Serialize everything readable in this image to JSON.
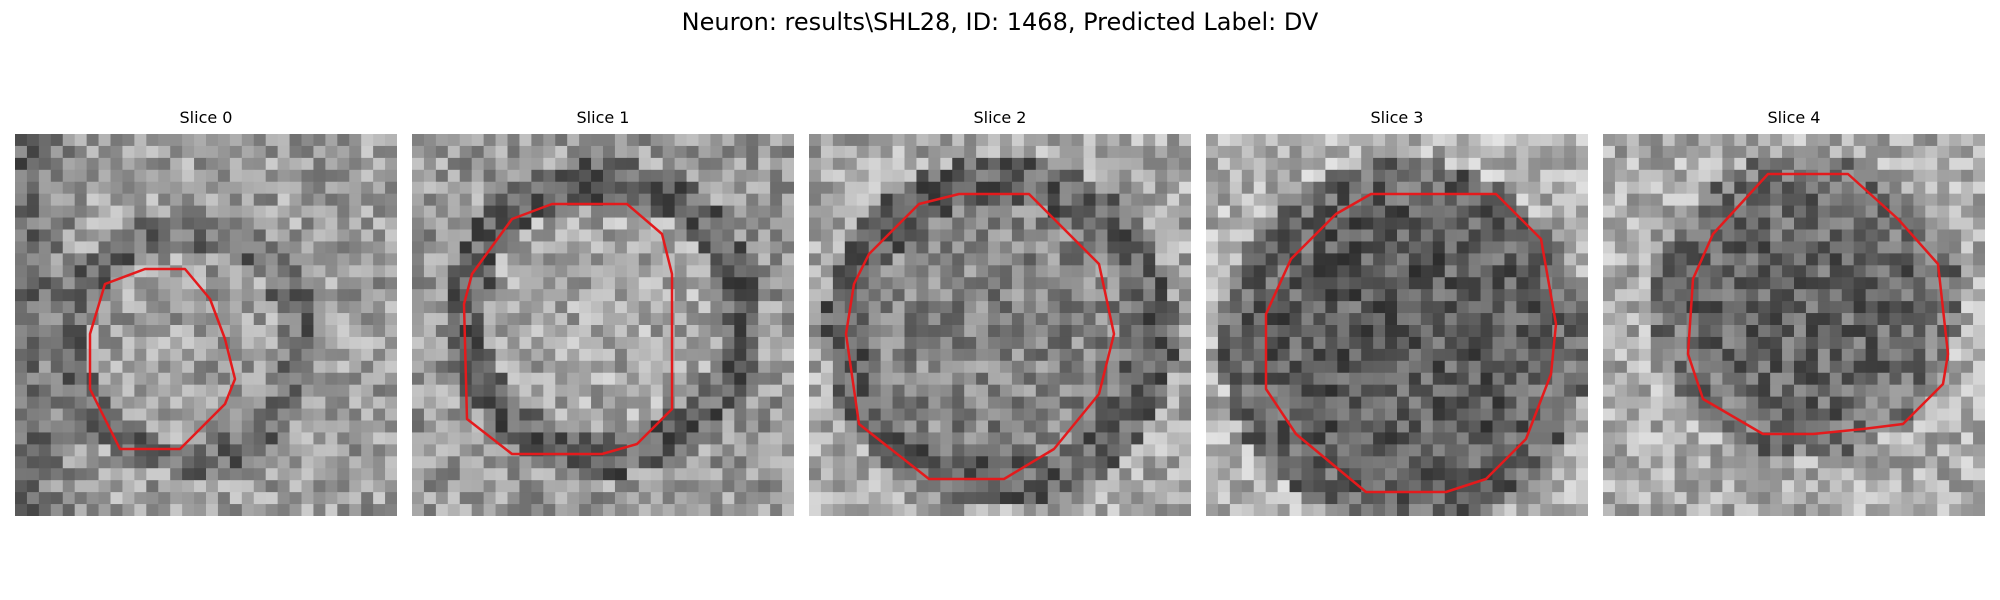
{
  "title": "Neuron: results\\SHL28, ID: 1468, Predicted Label: DV",
  "contour_color": "#e41a1c",
  "slices": [
    {
      "label": "Slice 0"
    },
    {
      "label": "Slice 1"
    },
    {
      "label": "Slice 2"
    },
    {
      "label": "Slice 3"
    },
    {
      "label": "Slice 4"
    }
  ]
}
